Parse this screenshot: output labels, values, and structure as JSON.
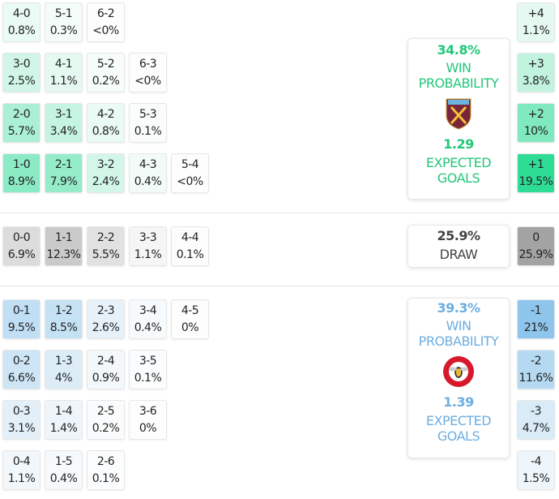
{
  "colors": {
    "home": "#2fdc96",
    "away": "#8ec5ec",
    "draw": "#a3a3a3",
    "home_text": "#24c77a",
    "away_text": "#6eaee0"
  },
  "home_grid": [
    [
      {
        "s": "4-0",
        "p": "0.8%"
      },
      {
        "s": "5-1",
        "p": "0.3%"
      },
      {
        "s": "6-2",
        "p": "<0%"
      }
    ],
    [
      {
        "s": "3-0",
        "p": "2.5%"
      },
      {
        "s": "4-1",
        "p": "1.1%"
      },
      {
        "s": "5-2",
        "p": "0.2%"
      },
      {
        "s": "6-3",
        "p": "<0%"
      }
    ],
    [
      {
        "s": "2-0",
        "p": "5.7%"
      },
      {
        "s": "3-1",
        "p": "3.4%"
      },
      {
        "s": "4-2",
        "p": "0.8%"
      },
      {
        "s": "5-3",
        "p": "0.1%"
      }
    ],
    [
      {
        "s": "1-0",
        "p": "8.9%"
      },
      {
        "s": "2-1",
        "p": "7.9%"
      },
      {
        "s": "3-2",
        "p": "2.4%"
      },
      {
        "s": "4-3",
        "p": "0.4%"
      },
      {
        "s": "5-4",
        "p": "<0%"
      }
    ]
  ],
  "draw_grid": [
    [
      {
        "s": "0-0",
        "p": "6.9%"
      },
      {
        "s": "1-1",
        "p": "12.3%"
      },
      {
        "s": "2-2",
        "p": "5.5%"
      },
      {
        "s": "3-3",
        "p": "1.1%"
      },
      {
        "s": "4-4",
        "p": "0.1%"
      }
    ]
  ],
  "away_grid": [
    [
      {
        "s": "0-1",
        "p": "9.5%"
      },
      {
        "s": "1-2",
        "p": "8.5%"
      },
      {
        "s": "2-3",
        "p": "2.6%"
      },
      {
        "s": "3-4",
        "p": "0.4%"
      },
      {
        "s": "4-5",
        "p": "0%"
      }
    ],
    [
      {
        "s": "0-2",
        "p": "6.6%"
      },
      {
        "s": "1-3",
        "p": "4%"
      },
      {
        "s": "2-4",
        "p": "0.9%"
      },
      {
        "s": "3-5",
        "p": "0.1%"
      }
    ],
    [
      {
        "s": "0-3",
        "p": "3.1%"
      },
      {
        "s": "1-4",
        "p": "1.4%"
      },
      {
        "s": "2-5",
        "p": "0.2%"
      },
      {
        "s": "3-6",
        "p": "0%"
      }
    ],
    [
      {
        "s": "0-4",
        "p": "1.1%"
      },
      {
        "s": "1-5",
        "p": "0.4%"
      },
      {
        "s": "2-6",
        "p": "0.1%"
      }
    ]
  ],
  "margins_home": [
    {
      "s": "+4",
      "p": "1.1%"
    },
    {
      "s": "+3",
      "p": "3.8%"
    },
    {
      "s": "+2",
      "p": "10%"
    },
    {
      "s": "+1",
      "p": "19.5%"
    }
  ],
  "margins_draw": [
    {
      "s": "0",
      "p": "25.9%"
    }
  ],
  "margins_away": [
    {
      "s": "-1",
      "p": "21%"
    },
    {
      "s": "-2",
      "p": "11.6%"
    },
    {
      "s": "-3",
      "p": "4.7%"
    },
    {
      "s": "-4",
      "p": "1.5%"
    }
  ],
  "home_card": {
    "win_pct": "34.8%",
    "win_label_1": "WIN",
    "win_label_2": "PROBABILITY",
    "crest": "west-ham-crest",
    "xg": "1.29",
    "xg_label_1": "EXPECTED",
    "xg_label_2": "GOALS"
  },
  "draw_card": {
    "pct": "25.9%",
    "label": "DRAW"
  },
  "away_card": {
    "win_pct": "39.3%",
    "win_label_1": "WIN",
    "win_label_2": "PROBABILITY",
    "crest": "brentford-crest",
    "xg": "1.39",
    "xg_label_1": "EXPECTED",
    "xg_label_2": "GOALS"
  }
}
